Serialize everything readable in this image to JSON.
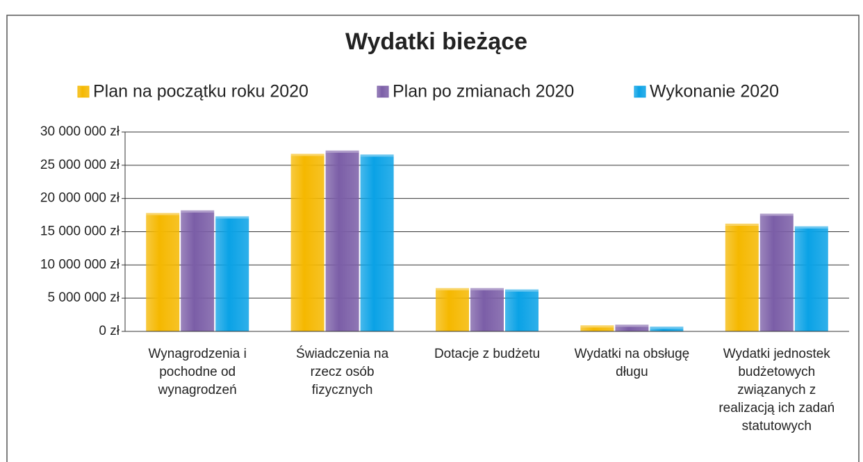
{
  "chart_data": {
    "type": "bar",
    "title": "Wydatki bieżące",
    "categories": [
      "Wynagrodzenia i pochodne od wynagrodzeń",
      "Świadczenia na rzecz osób fizycznych",
      "Dotacje z budżetu",
      "Wydatki na obsługę długu",
      "Wydatki jednostek budżetowych związanych z realizacją ich zadań statutowych"
    ],
    "series": [
      {
        "name": "Plan na początku roku 2020",
        "color": "#f5b800",
        "values": [
          17500000,
          26400000,
          6200000,
          600000,
          15900000
        ]
      },
      {
        "name": "Plan po zmianach 2020",
        "color": "#7b5ea7",
        "values": [
          17900000,
          26900000,
          6200000,
          700000,
          17400000
        ]
      },
      {
        "name": "Wykonanie 2020",
        "color": "#0aa2e6",
        "values": [
          17000000,
          26300000,
          6000000,
          400000,
          15500000
        ]
      }
    ],
    "ylim": [
      0,
      30000000
    ],
    "yticks": [
      {
        "value": 0,
        "label": "0 zł"
      },
      {
        "value": 5000000,
        "label": "5 000 000 zł"
      },
      {
        "value": 10000000,
        "label": "10 000 000 zł"
      },
      {
        "value": 15000000,
        "label": "15 000 000 zł"
      },
      {
        "value": 20000000,
        "label": "20 000 000 zł"
      },
      {
        "value": 25000000,
        "label": "25 000 000 zł"
      },
      {
        "value": 30000000,
        "label": "30 000 000 zł"
      }
    ],
    "grid": true,
    "legend": "top"
  }
}
